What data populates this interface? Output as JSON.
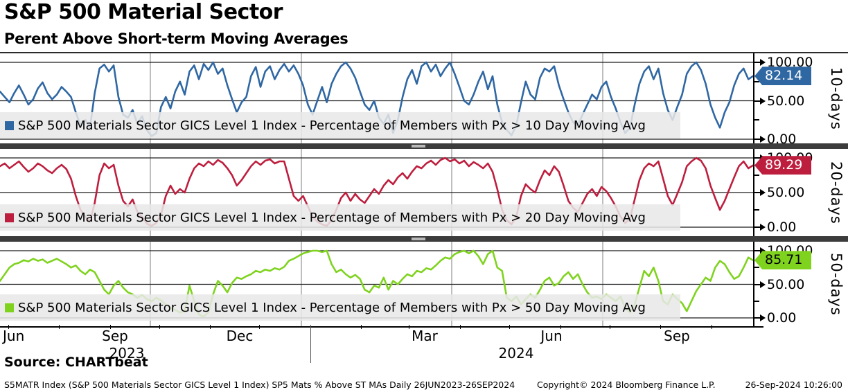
{
  "header": {
    "title": "S&P 500 Material Sector",
    "subtitle": "Perent Above Short-term Moving Averages"
  },
  "panels": [
    {
      "id": "10d",
      "side_label": "10-days",
      "last_value_label": "82.14",
      "color": "#2f67a3",
      "badge_text_color": "#ffffff",
      "legend": "S&P 500 Materials Sector GICS Level 1 Index - Percentage of Members with Px > 10 Day Moving Avg"
    },
    {
      "id": "20d",
      "side_label": "20-days",
      "last_value_label": "89.29",
      "color": "#be1e3e",
      "badge_text_color": "#ffffff",
      "legend": "S&P 500 Materials Sector GICS Level 1 Index - Percentage of Members with Px > 20 Day Moving Avg"
    },
    {
      "id": "50d",
      "side_label": "50-days",
      "last_value_label": "85.71",
      "color": "#7fd31f",
      "badge_text_color": "#000000",
      "legend": "S&P 500 Materials Sector GICS Level 1 Index - Percentage of Members with Px > 50 Day Moving Avg"
    }
  ],
  "axis": {
    "ytick_labels": [
      "100.00",
      "50.00",
      "0.00"
    ],
    "months": [
      "Jun",
      "Sep",
      "Dec",
      "Mar",
      "Jun",
      "Sep"
    ],
    "years": [
      "2023",
      "2024"
    ]
  },
  "footer": {
    "source": "Source: CHARTbeat",
    "left": "S5MATR Index (S&P 500 Materials Sector GICS Level 1 Index) SP5 Mats % Above ST MAs  Daily 26JUN2023-26SEP2024",
    "copyright": "Copyright© 2024 Bloomberg Finance L.P.",
    "timestamp": "26-Sep-2024 10:26:00"
  },
  "chart_data": [
    {
      "type": "line",
      "title": "Percentage of Members with Px > 10 Day Moving Avg",
      "x_range": [
        "26JUN2023",
        "26SEP2024"
      ],
      "xticklabels": [
        "Jun",
        "Sep",
        "Dec",
        "Mar",
        "Jun",
        "Sep"
      ],
      "ylim": [
        0,
        100
      ],
      "yticks": [
        0,
        50,
        100
      ],
      "grid": true,
      "legend_position": "bottom-left",
      "series": [
        {
          "name": "S&P 500 Materials Sector GICS Level 1 Index - Percentage of Members with Px > 10 Day Moving Avg",
          "color": "#2f67a3",
          "last_value": 82.14,
          "values": [
            62,
            55,
            48,
            60,
            70,
            58,
            45,
            52,
            66,
            74,
            60,
            52,
            58,
            68,
            62,
            55,
            35,
            18,
            25,
            15,
            60,
            92,
            97,
            88,
            96,
            55,
            32,
            28,
            38,
            20,
            30,
            12,
            4,
            8,
            42,
            55,
            40,
            62,
            75,
            58,
            88,
            96,
            78,
            98,
            90,
            100,
            85,
            92,
            70,
            52,
            35,
            48,
            55,
            82,
            94,
            68,
            88,
            95,
            78,
            90,
            98,
            88,
            96,
            85,
            70,
            45,
            32,
            50,
            68,
            48,
            72,
            85,
            95,
            100,
            92,
            80,
            62,
            45,
            38,
            50,
            28,
            20,
            32,
            8,
            25,
            55,
            78,
            90,
            72,
            95,
            100,
            88,
            97,
            82,
            92,
            100,
            85,
            68,
            50,
            45,
            58,
            75,
            88,
            65,
            82,
            45,
            22,
            12,
            5,
            18,
            48,
            75,
            58,
            52,
            80,
            92,
            88,
            95,
            70,
            52,
            35,
            22,
            18,
            32,
            45,
            58,
            52,
            68,
            75,
            55,
            40,
            22,
            8,
            15,
            45,
            72,
            88,
            95,
            78,
            92,
            60,
            38,
            25,
            42,
            58,
            85,
            95,
            100,
            90,
            72,
            45,
            28,
            15,
            35,
            48,
            70,
            85,
            92,
            78,
            82.14
          ]
        }
      ]
    },
    {
      "type": "line",
      "title": "Percentage of Members with Px > 20 Day Moving Avg",
      "x_range": [
        "26JUN2023",
        "26SEP2024"
      ],
      "xticklabels": [
        "Jun",
        "Sep",
        "Dec",
        "Mar",
        "Jun",
        "Sep"
      ],
      "ylim": [
        0,
        100
      ],
      "yticks": [
        0,
        50,
        100
      ],
      "grid": true,
      "legend_position": "bottom-left",
      "series": [
        {
          "name": "S&P 500 Materials Sector GICS Level 1 Index - Percentage of Members with Px > 20 Day Moving Avg",
          "color": "#be1e3e",
          "last_value": 89.29,
          "values": [
            88,
            92,
            85,
            90,
            95,
            87,
            80,
            85,
            92,
            88,
            82,
            78,
            85,
            90,
            84,
            70,
            45,
            25,
            15,
            8,
            35,
            75,
            92,
            85,
            90,
            60,
            38,
            30,
            40,
            22,
            15,
            5,
            2,
            6,
            18,
            45,
            60,
            48,
            55,
            50,
            70,
            85,
            92,
            88,
            95,
            90,
            97,
            93,
            85,
            75,
            60,
            68,
            78,
            88,
            95,
            90,
            96,
            98,
            92,
            95,
            95,
            70,
            45,
            38,
            45,
            30,
            15,
            8,
            4,
            2,
            10,
            25,
            42,
            50,
            38,
            48,
            40,
            35,
            45,
            55,
            48,
            60,
            68,
            62,
            72,
            78,
            70,
            80,
            88,
            85,
            92,
            96,
            90,
            97,
            100,
            95,
            98,
            92,
            96,
            88,
            94,
            90,
            85,
            92,
            80,
            55,
            25,
            10,
            4,
            15,
            45,
            62,
            55,
            50,
            68,
            82,
            75,
            88,
            80,
            60,
            38,
            28,
            22,
            35,
            48,
            55,
            45,
            58,
            52,
            42,
            30,
            15,
            6,
            12,
            40,
            68,
            85,
            92,
            88,
            95,
            70,
            45,
            32,
            48,
            65,
            88,
            95,
            100,
            96,
            85,
            60,
            42,
            25,
            38,
            55,
            72,
            88,
            95,
            85,
            89.29
          ]
        }
      ]
    },
    {
      "type": "line",
      "title": "Percentage of Members with Px > 50 Day Moving Avg",
      "x_range": [
        "26JUN2023",
        "26SEP2024"
      ],
      "xticklabels": [
        "Jun",
        "Sep",
        "Dec",
        "Mar",
        "Jun",
        "Sep"
      ],
      "ylim": [
        0,
        100
      ],
      "yticks": [
        0,
        50,
        100
      ],
      "grid": true,
      "legend_position": "bottom-left",
      "series": [
        {
          "name": "S&P 500 Materials Sector GICS Level 1 Index - Percentage of Members with Px > 50 Day Moving Avg",
          "color": "#7fd31f",
          "last_value": 85.71,
          "values": [
            55,
            65,
            75,
            80,
            82,
            86,
            84,
            88,
            85,
            87,
            82,
            85,
            88,
            84,
            80,
            75,
            78,
            70,
            65,
            72,
            68,
            55,
            42,
            35,
            48,
            55,
            45,
            38,
            35,
            30,
            34,
            28,
            25,
            30,
            26,
            20,
            15,
            12,
            8,
            10,
            48,
            25,
            5,
            2,
            8,
            35,
            55,
            48,
            38,
            52,
            60,
            58,
            62,
            65,
            70,
            68,
            72,
            70,
            74,
            72,
            76,
            85,
            88,
            92,
            96,
            98,
            100,
            100,
            98,
            100,
            80,
            68,
            72,
            65,
            60,
            64,
            58,
            42,
            38,
            48,
            45,
            60,
            42,
            55,
            50,
            58,
            65,
            62,
            70,
            68,
            74,
            72,
            78,
            85,
            90,
            88,
            95,
            98,
            100,
            96,
            100,
            92,
            80,
            95,
            100,
            75,
            70,
            30,
            25,
            32,
            20,
            28,
            35,
            30,
            42,
            55,
            60,
            48,
            52,
            62,
            68,
            58,
            65,
            50,
            38,
            30,
            32,
            28,
            35,
            30,
            25,
            32,
            15,
            8,
            20,
            45,
            70,
            62,
            75,
            55,
            25,
            20,
            35,
            28,
            22,
            10,
            25,
            40,
            50,
            60,
            55,
            75,
            85,
            80,
            68,
            58,
            62,
            75,
            90,
            85.71
          ]
        }
      ]
    }
  ]
}
